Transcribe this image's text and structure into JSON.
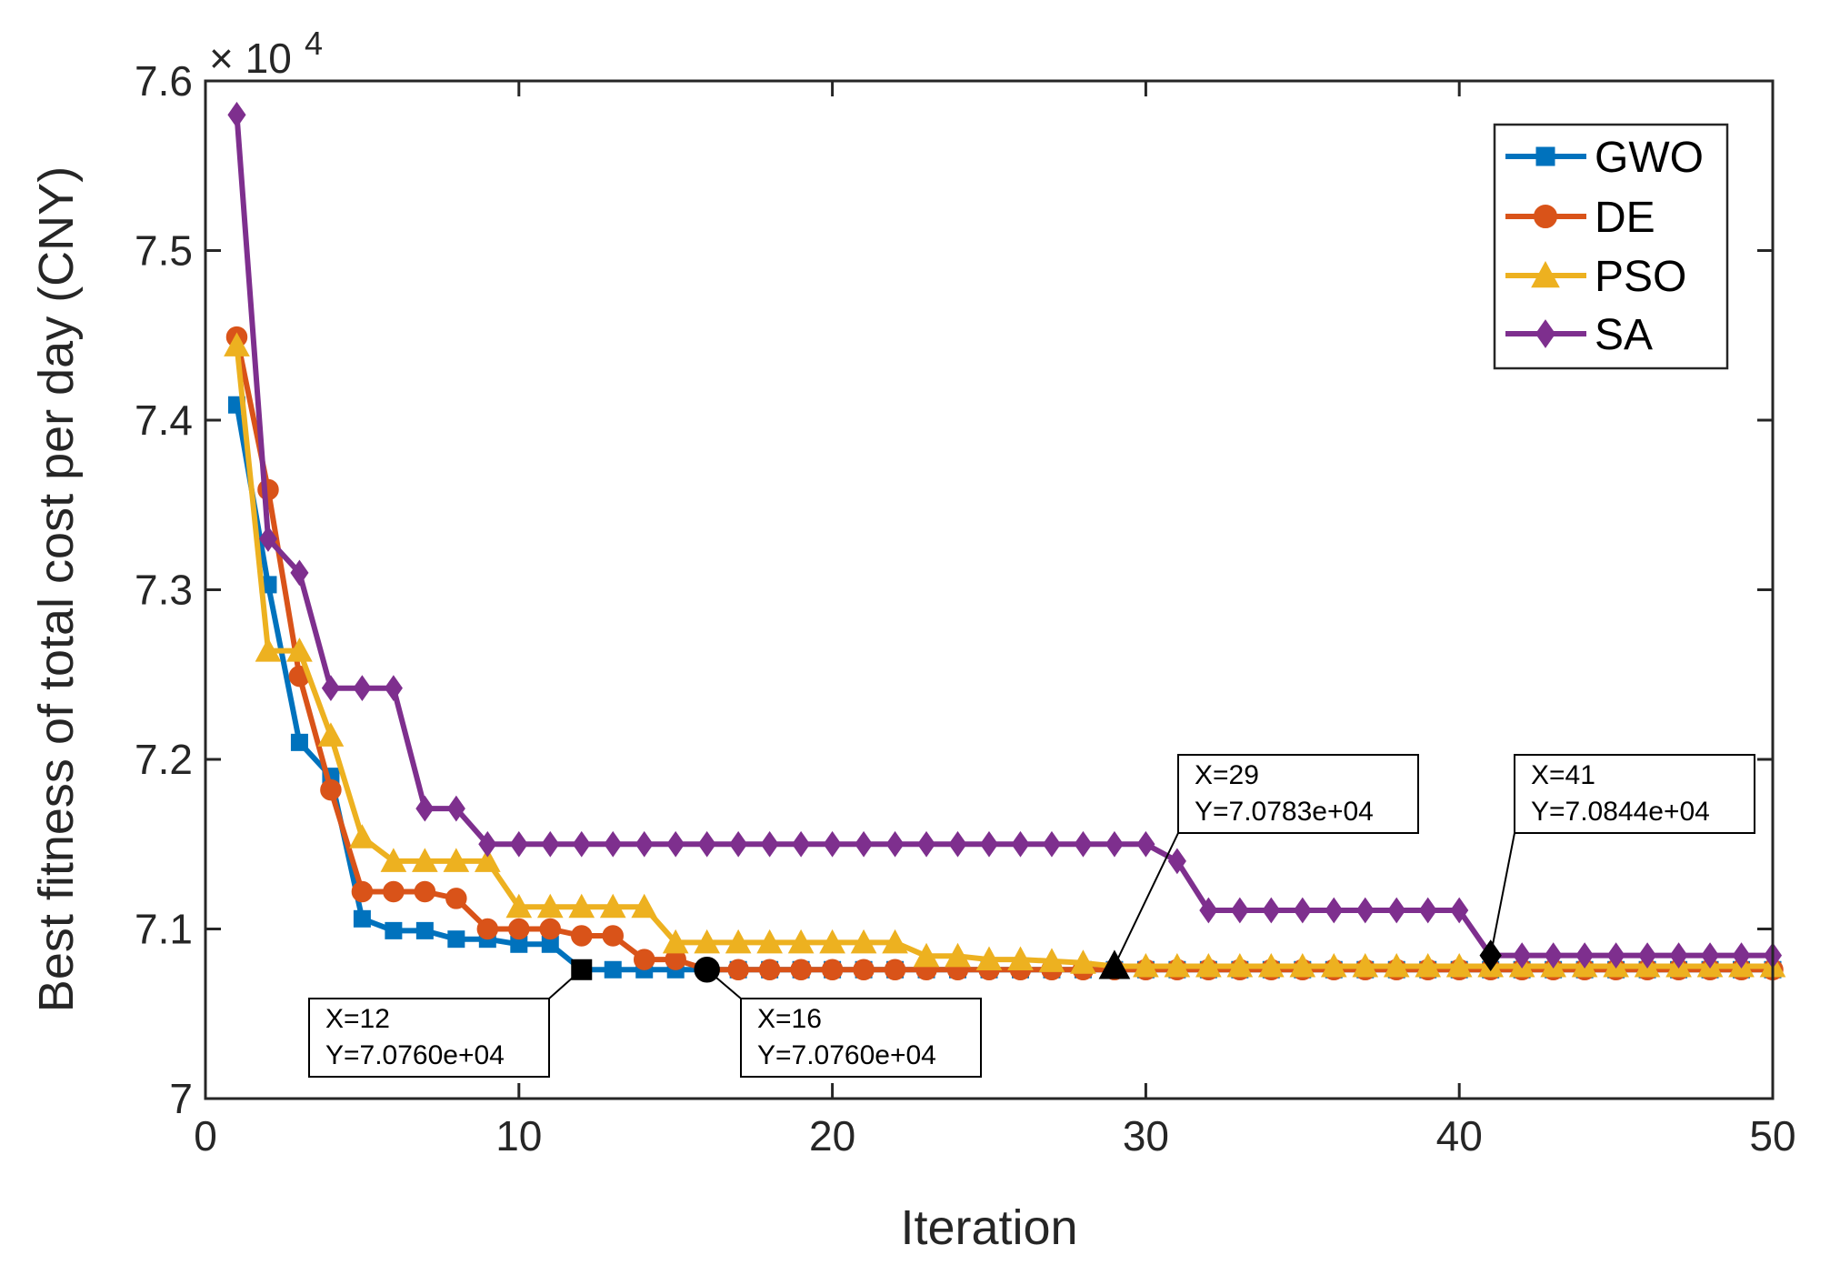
{
  "chart_data": {
    "type": "line",
    "title": "",
    "xlabel": "Iteration",
    "ylabel": "Best fitness of total cost per day (CNY)",
    "exponent": {
      "base": "× 10",
      "power": "4"
    },
    "xlim": [
      0,
      50
    ],
    "ylim": [
      7.0,
      7.6
    ],
    "xticks": [
      0,
      10,
      20,
      30,
      40,
      50
    ],
    "xtick_labels": [
      "0",
      "10",
      "20",
      "30",
      "40",
      "50"
    ],
    "yticks": [
      7.0,
      7.1,
      7.2,
      7.3,
      7.4,
      7.5,
      7.6
    ],
    "ytick_labels": [
      "7",
      "7.1",
      "7.2",
      "7.3",
      "7.4",
      "7.5",
      "7.6"
    ],
    "grid": false,
    "legend_position": "top-right",
    "x": [
      1,
      2,
      3,
      4,
      5,
      6,
      7,
      8,
      9,
      10,
      11,
      12,
      13,
      14,
      15,
      16,
      17,
      18,
      19,
      20,
      21,
      22,
      23,
      24,
      25,
      26,
      27,
      28,
      29,
      30,
      31,
      32,
      33,
      34,
      35,
      36,
      37,
      38,
      39,
      40,
      41,
      42,
      43,
      44,
      45,
      46,
      47,
      48,
      49,
      50
    ],
    "series": [
      {
        "name": "GWO",
        "color": "#0072BD",
        "marker": "square",
        "values": [
          7.409,
          7.303,
          7.21,
          7.19,
          7.106,
          7.099,
          7.099,
          7.094,
          7.094,
          7.091,
          7.091,
          7.076,
          7.076,
          7.076,
          7.076,
          7.076,
          7.076,
          7.076,
          7.076,
          7.076,
          7.076,
          7.076,
          7.076,
          7.076,
          7.076,
          7.076,
          7.076,
          7.076,
          7.076,
          7.076,
          7.076,
          7.076,
          7.076,
          7.076,
          7.076,
          7.076,
          7.076,
          7.076,
          7.076,
          7.076,
          7.076,
          7.076,
          7.076,
          7.076,
          7.076,
          7.076,
          7.076,
          7.076,
          7.076,
          7.076
        ]
      },
      {
        "name": "DE",
        "color": "#D95319",
        "marker": "circle",
        "values": [
          7.449,
          7.359,
          7.249,
          7.182,
          7.122,
          7.122,
          7.122,
          7.118,
          7.1,
          7.1,
          7.1,
          7.096,
          7.096,
          7.082,
          7.082,
          7.076,
          7.076,
          7.076,
          7.076,
          7.076,
          7.076,
          7.076,
          7.076,
          7.076,
          7.076,
          7.076,
          7.076,
          7.076,
          7.076,
          7.076,
          7.076,
          7.076,
          7.076,
          7.076,
          7.076,
          7.076,
          7.076,
          7.076,
          7.076,
          7.076,
          7.076,
          7.076,
          7.076,
          7.076,
          7.076,
          7.076,
          7.076,
          7.076,
          7.076,
          7.076
        ]
      },
      {
        "name": "PSO",
        "color": "#EDB120",
        "marker": "triangle",
        "values": [
          7.444,
          7.264,
          7.264,
          7.214,
          7.154,
          7.14,
          7.14,
          7.14,
          7.14,
          7.113,
          7.113,
          7.113,
          7.113,
          7.113,
          7.092,
          7.092,
          7.092,
          7.092,
          7.092,
          7.092,
          7.092,
          7.092,
          7.084,
          7.084,
          7.082,
          7.082,
          7.081,
          7.08,
          7.078,
          7.078,
          7.078,
          7.078,
          7.078,
          7.078,
          7.078,
          7.078,
          7.078,
          7.078,
          7.078,
          7.078,
          7.078,
          7.078,
          7.078,
          7.078,
          7.078,
          7.078,
          7.078,
          7.078,
          7.078,
          7.078
        ]
      },
      {
        "name": "SA",
        "color": "#7E2F8E",
        "marker": "diamond",
        "values": [
          7.58,
          7.33,
          7.31,
          7.242,
          7.242,
          7.242,
          7.171,
          7.171,
          7.15,
          7.15,
          7.15,
          7.15,
          7.15,
          7.15,
          7.15,
          7.15,
          7.15,
          7.15,
          7.15,
          7.15,
          7.15,
          7.15,
          7.15,
          7.15,
          7.15,
          7.15,
          7.15,
          7.15,
          7.15,
          7.15,
          7.14,
          7.111,
          7.111,
          7.111,
          7.111,
          7.111,
          7.111,
          7.111,
          7.111,
          7.111,
          7.0844,
          7.0844,
          7.0844,
          7.0844,
          7.0844,
          7.0844,
          7.0844,
          7.0844,
          7.0844,
          7.0844
        ]
      }
    ],
    "annotations": [
      {
        "series": "GWO",
        "marker": "square",
        "x": 12,
        "y": 7.076,
        "label_x": "X=12",
        "label_y": "Y=7.0760e+04",
        "placement": "below-left"
      },
      {
        "series": "DE",
        "marker": "circle",
        "x": 16,
        "y": 7.076,
        "label_x": "X=16",
        "label_y": "Y=7.0760e+04",
        "placement": "below-right"
      },
      {
        "series": "PSO",
        "marker": "triangle",
        "x": 29,
        "y": 7.0783,
        "label_x": "X=29",
        "label_y": "Y=7.0783e+04",
        "placement": "above-right"
      },
      {
        "series": "SA",
        "marker": "diamond",
        "x": 41,
        "y": 7.0844,
        "label_x": "X=41",
        "label_y": "Y=7.0844e+04",
        "placement": "above-right"
      }
    ]
  }
}
